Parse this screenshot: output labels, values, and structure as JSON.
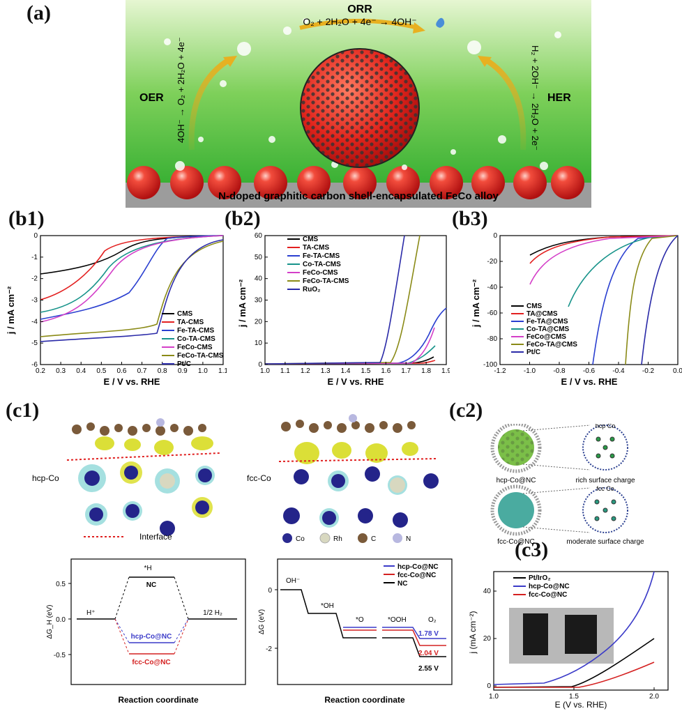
{
  "panels": {
    "a": "(a)",
    "b1": "(b1)",
    "b2": "(b2)",
    "b3": "(b3)",
    "c1": "(c1)",
    "c2": "(c2)",
    "c3": "(c3)"
  },
  "schematic": {
    "orr_title": "ORR",
    "orr_eq": "O₂ + 2H₂O + 4e⁻ → 4OH⁻",
    "oer_title": "OER",
    "oer_eq": "4OH⁻ → O₂ + 2H₂O + 4e⁻",
    "her_title": "HER",
    "her_eq": "H₂ + 2OH⁻ → 2H₂O + 2e⁻",
    "substrate_caption": "N-doped graphitic carbon shell-encapsulated FeCo alloy",
    "colors": {
      "bg_top": "#d8f0c0",
      "bg_bottom": "#2fae2a",
      "sphere": "#e22b22",
      "substrate": "#9a9a9a"
    }
  },
  "b1": {
    "legend": [
      "CMS",
      "TA-CMS",
      "Fe-TA-CMS",
      "Co-TA-CMS",
      "FeCo-CMS",
      "FeCo-TA-CMS",
      "Pt/C"
    ],
    "colors": [
      "#000000",
      "#e32020",
      "#2a3fd0",
      "#17938a",
      "#d43fc8",
      "#8a8a16",
      "#2a2aa8"
    ],
    "ylabel": "j / mA cm⁻²",
    "xlabel": "E / V vs. RHE",
    "xticks": [
      "0.2",
      "0.3",
      "0.4",
      "0.5",
      "0.6",
      "0.7",
      "0.8",
      "0.9",
      "1.0",
      "1.1"
    ],
    "yticks": [
      "0",
      "-1",
      "-2",
      "-3",
      "-4",
      "-5",
      "-6"
    ]
  },
  "b2": {
    "legend": [
      "CMS",
      "TA-CMS",
      "Fe-TA-CMS",
      "Co-TA-CMS",
      "FeCo-CMS",
      "FeCo-TA-CMS",
      "RuO₂"
    ],
    "colors": [
      "#000000",
      "#e32020",
      "#2a3fd0",
      "#17938a",
      "#d43fc8",
      "#8a8a16",
      "#2a2aa8"
    ],
    "ylabel": "j / mA cm⁻²",
    "xlabel": "E / V vs. RHE",
    "xticks": [
      "1.0",
      "1.1",
      "1.2",
      "1.3",
      "1.4",
      "1.5",
      "1.6",
      "1.7",
      "1.8",
      "1.9"
    ],
    "yticks": [
      "0",
      "10",
      "20",
      "30",
      "40",
      "50",
      "60"
    ]
  },
  "b3": {
    "legend": [
      "CMS",
      "TA@CMS",
      "Fe-TA@CMS",
      "Co-TA@CMS",
      "FeCo@CMS",
      "FeCo-TA@CMS",
      "Pt/C"
    ],
    "colors": [
      "#000000",
      "#e32020",
      "#2a3fd0",
      "#17938a",
      "#d43fc8",
      "#8a8a16",
      "#2a2aa8"
    ],
    "ylabel": "j / mA cm⁻²",
    "xlabel": "E / V vs. RHE",
    "xticks": [
      "-1.2",
      "-1.0",
      "-0.8",
      "-0.6",
      "-0.4",
      "-0.2",
      "0.0"
    ],
    "yticks": [
      "0",
      "-20",
      "-40",
      "-60",
      "-80",
      "-100"
    ]
  },
  "c1": {
    "hcp_label": "hcp-Co",
    "fcc_label": "fcc-Co",
    "interface_label": "Interface",
    "atom_legend": [
      "Co",
      "Rh",
      "C",
      "N"
    ],
    "atom_colors": [
      "#2a2a90",
      "#d8d8c0",
      "#7a5a3a",
      "#b8b8e0"
    ],
    "her_diagram": {
      "ylabel": "ΔG_H (eV)",
      "xlabel": "Reaction coordinate",
      "yticks": [
        "0.5",
        "0.0",
        "-0.5"
      ],
      "hplus": "H⁺",
      "hstar": "*H",
      "nc": "NC",
      "half_h2": "1/2 H₂",
      "hcp": "hcp-Co@NC",
      "fcc": "fcc-Co@NC"
    },
    "oer_diagram": {
      "ylabel": "ΔG (eV)",
      "xlabel": "Reaction coordinate",
      "yticks": [
        "0",
        "-2"
      ],
      "oh_minus": "OH⁻",
      "oh": "*OH",
      "o": "*O",
      "ooh": "*OOH",
      "o2": "O₂",
      "legend": [
        "hcp-Co@NC",
        "fcc-Co@NC",
        "NC"
      ],
      "v1": "1.78 V",
      "v2": "2.04 V",
      "v3": "2.55 V"
    }
  },
  "c2": {
    "hcp_caption": "hcp-Co@NC",
    "hcp_desc": "rich surface charge",
    "hcp_inset": "hcp Co",
    "fcc_caption": "fcc-Co@NC",
    "fcc_desc": "moderate surface charge",
    "fcc_inset": "fcc Co"
  },
  "c3": {
    "legend": [
      "Pt/IrO₂",
      "hcp-Co@NC",
      "fcc-Co@NC"
    ],
    "colors": [
      "#000000",
      "#3a3ac8",
      "#d42020"
    ],
    "ylabel": "j (mA cm⁻²)",
    "xlabel": "E (V vs. RHE)",
    "xticks": [
      "1.0",
      "1.5",
      "2.0"
    ],
    "yticks": [
      "0",
      "20",
      "40"
    ]
  }
}
